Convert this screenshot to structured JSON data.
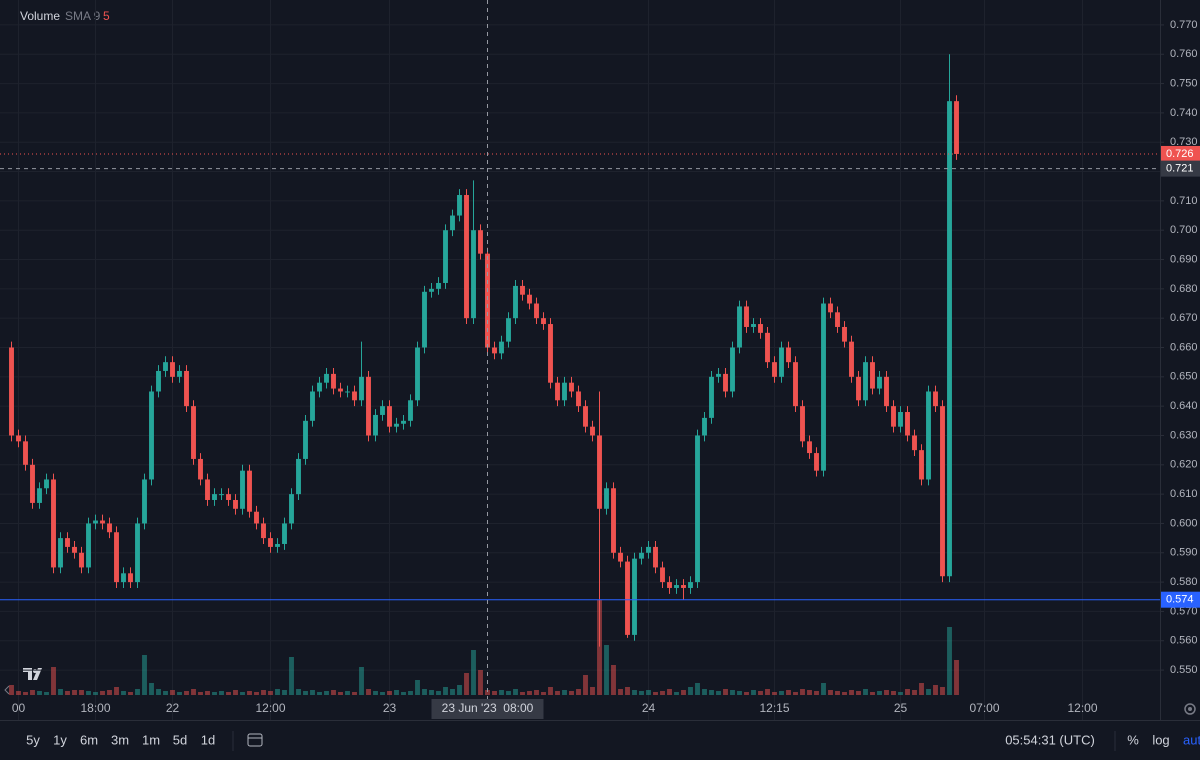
{
  "chart_data": {
    "type": "candlestick",
    "legend": {
      "name": "Volume",
      "indicator": "SMA 9",
      "value": "5"
    },
    "categories": [
      null,
      "00",
      null,
      null,
      null,
      null,
      null,
      null,
      null,
      null,
      null,
      null,
      "18:00",
      null,
      null,
      null,
      null,
      null,
      null,
      null,
      null,
      null,
      null,
      "22",
      null,
      null,
      null,
      null,
      null,
      null,
      null,
      null,
      null,
      null,
      null,
      null,
      null,
      "12:00",
      null,
      null,
      null,
      null,
      null,
      null,
      null,
      null,
      null,
      null,
      null,
      null,
      null,
      null,
      null,
      null,
      "23",
      null,
      null,
      null,
      null,
      null,
      null,
      null,
      null,
      null,
      null,
      null,
      null,
      null,
      null,
      null,
      null,
      null,
      null,
      null,
      null,
      null,
      null,
      null,
      null,
      null,
      null,
      null,
      null,
      null,
      null,
      null,
      null,
      null,
      null,
      null,
      null,
      "24",
      null,
      null,
      null,
      null,
      null,
      null,
      null,
      null,
      null,
      null,
      null,
      null,
      null,
      null,
      null,
      null,
      null,
      "12:15",
      null,
      null,
      null,
      null,
      null,
      null,
      null,
      null,
      null,
      null,
      null,
      null,
      null,
      null,
      null,
      null,
      null,
      "25",
      null,
      null,
      null,
      null,
      null,
      null,
      null,
      null,
      null,
      null,
      null,
      "07:00",
      null,
      null,
      null,
      null,
      null,
      null,
      null,
      null,
      null,
      null,
      null,
      null,
      null,
      "12:00",
      null,
      null,
      null,
      null,
      null,
      null,
      null,
      null,
      null,
      null
    ],
    "open": [
      0.66,
      0.63,
      0.628,
      0.62,
      0.607,
      0.612,
      0.615,
      0.585,
      0.595,
      0.592,
      0.59,
      0.585,
      0.6,
      0.601,
      0.6,
      0.597,
      0.58,
      0.583,
      0.58,
      0.6,
      0.615,
      0.645,
      0.652,
      0.655,
      0.65,
      0.652,
      0.64,
      0.622,
      0.615,
      0.608,
      0.61,
      0.61,
      0.608,
      0.605,
      0.618,
      0.604,
      0.6,
      0.595,
      0.592,
      0.593,
      0.6,
      0.61,
      0.622,
      0.635,
      0.645,
      0.648,
      0.651,
      0.646,
      0.645,
      0.645,
      0.642,
      0.65,
      0.63,
      0.637,
      0.64,
      0.633,
      0.634,
      0.635,
      0.642,
      0.66,
      0.679,
      0.68,
      0.682,
      0.7,
      0.705,
      0.712,
      0.67,
      0.7,
      0.692,
      0.66,
      0.658,
      0.662,
      0.67,
      0.681,
      0.678,
      0.675,
      0.67,
      0.668,
      0.648,
      0.642,
      0.648,
      0.645,
      0.64,
      0.633,
      0.63,
      0.605,
      0.612,
      0.59,
      0.587,
      0.562,
      0.588,
      0.59,
      0.592,
      0.585,
      0.58,
      0.578,
      0.579,
      0.578,
      0.58,
      0.63,
      0.636,
      0.65,
      0.651,
      0.645,
      0.66,
      0.674,
      0.667,
      0.668,
      0.665,
      0.655,
      0.65,
      0.66,
      0.655,
      0.64,
      0.628,
      0.624,
      0.618,
      0.675,
      0.672,
      0.667,
      0.662,
      0.65,
      0.642,
      0.655,
      0.646,
      0.65,
      0.64,
      0.633,
      0.638,
      0.63,
      0.625,
      0.615,
      0.645,
      0.64,
      0.582,
      0.744,
      null,
      null,
      null,
      null,
      null,
      null,
      null,
      null,
      null,
      null,
      null,
      null,
      null,
      null,
      null,
      null,
      null,
      null,
      null,
      null,
      null,
      null,
      null,
      null,
      null,
      null,
      null,
      null
    ],
    "high": [
      0.662,
      0.632,
      0.63,
      0.622,
      0.614,
      0.617,
      0.617,
      0.597,
      0.597,
      0.594,
      0.592,
      0.602,
      0.603,
      0.603,
      0.602,
      0.599,
      0.585,
      0.585,
      0.602,
      0.617,
      0.647,
      0.654,
      0.657,
      0.657,
      0.654,
      0.654,
      0.642,
      0.624,
      0.617,
      0.612,
      0.612,
      0.612,
      0.61,
      0.62,
      0.62,
      0.606,
      0.602,
      0.597,
      0.595,
      0.602,
      0.612,
      0.624,
      0.637,
      0.647,
      0.65,
      0.653,
      0.653,
      0.648,
      0.647,
      0.647,
      0.662,
      0.652,
      0.639,
      0.642,
      0.642,
      0.636,
      0.637,
      0.644,
      0.662,
      0.681,
      0.682,
      0.684,
      0.702,
      0.707,
      0.714,
      0.714,
      0.717,
      0.702,
      0.694,
      0.662,
      0.664,
      0.672,
      0.683,
      0.683,
      0.68,
      0.677,
      0.672,
      0.67,
      0.65,
      0.65,
      0.65,
      0.647,
      0.642,
      0.635,
      0.645,
      0.614,
      0.614,
      0.592,
      0.589,
      0.59,
      0.592,
      0.594,
      0.594,
      0.587,
      0.582,
      0.581,
      0.581,
      0.582,
      0.632,
      0.638,
      0.652,
      0.653,
      0.653,
      0.662,
      0.676,
      0.676,
      0.67,
      0.67,
      0.667,
      0.657,
      0.662,
      0.662,
      0.657,
      0.642,
      0.63,
      0.626,
      0.677,
      0.677,
      0.674,
      0.669,
      0.664,
      0.652,
      0.657,
      0.657,
      0.652,
      0.652,
      0.642,
      0.64,
      0.64,
      0.632,
      0.627,
      0.647,
      0.647,
      0.642,
      0.76,
      0.746,
      null,
      null,
      null,
      null,
      null,
      null,
      null,
      null,
      null,
      null,
      null,
      null,
      null,
      null,
      null,
      null,
      null,
      null,
      null,
      null,
      null,
      null,
      null,
      null,
      null,
      null,
      null,
      null
    ],
    "low": [
      0.628,
      0.626,
      0.618,
      0.605,
      0.605,
      0.61,
      0.583,
      0.583,
      0.59,
      0.588,
      0.583,
      0.583,
      0.598,
      0.598,
      0.595,
      0.578,
      0.578,
      0.578,
      0.578,
      0.598,
      0.613,
      0.643,
      0.65,
      0.648,
      0.648,
      0.638,
      0.62,
      0.613,
      0.606,
      0.606,
      0.608,
      0.606,
      0.603,
      0.603,
      0.602,
      0.598,
      0.593,
      0.59,
      0.59,
      0.591,
      0.598,
      0.608,
      0.62,
      0.633,
      0.643,
      0.646,
      0.644,
      0.643,
      0.643,
      0.64,
      0.64,
      0.628,
      0.628,
      0.635,
      0.631,
      0.631,
      0.632,
      0.633,
      0.64,
      0.658,
      0.677,
      0.678,
      0.68,
      0.698,
      0.703,
      0.668,
      0.668,
      0.69,
      0.658,
      0.656,
      0.656,
      0.66,
      0.668,
      0.676,
      0.673,
      0.668,
      0.666,
      0.646,
      0.64,
      0.64,
      0.643,
      0.638,
      0.631,
      0.628,
      0.558,
      0.603,
      0.588,
      0.585,
      0.561,
      0.56,
      0.586,
      0.588,
      0.583,
      0.578,
      0.576,
      0.576,
      0.574,
      0.576,
      0.578,
      0.628,
      0.634,
      0.648,
      0.643,
      0.643,
      0.658,
      0.665,
      0.665,
      0.663,
      0.653,
      0.648,
      0.648,
      0.653,
      0.638,
      0.626,
      0.622,
      0.616,
      0.616,
      0.67,
      0.665,
      0.66,
      0.648,
      0.64,
      0.64,
      0.644,
      0.644,
      0.638,
      0.631,
      0.631,
      0.628,
      0.623,
      0.613,
      0.613,
      0.638,
      0.58,
      0.58,
      0.724,
      null,
      null,
      null,
      null,
      null,
      null,
      null,
      null,
      null,
      null,
      null,
      null,
      null,
      null,
      null,
      null,
      null,
      null,
      null,
      null,
      null,
      null,
      null,
      null,
      null,
      null,
      null,
      null
    ],
    "close": [
      0.63,
      0.628,
      0.62,
      0.607,
      0.612,
      0.615,
      0.585,
      0.595,
      0.592,
      0.59,
      0.585,
      0.6,
      0.601,
      0.6,
      0.597,
      0.58,
      0.583,
      0.58,
      0.6,
      0.615,
      0.645,
      0.652,
      0.655,
      0.65,
      0.652,
      0.64,
      0.622,
      0.615,
      0.608,
      0.61,
      0.61,
      0.608,
      0.605,
      0.618,
      0.604,
      0.6,
      0.595,
      0.592,
      0.593,
      0.6,
      0.61,
      0.622,
      0.635,
      0.645,
      0.648,
      0.651,
      0.646,
      0.645,
      0.645,
      0.642,
      0.65,
      0.63,
      0.637,
      0.64,
      0.633,
      0.634,
      0.635,
      0.642,
      0.66,
      0.679,
      0.68,
      0.682,
      0.7,
      0.705,
      0.712,
      0.67,
      0.7,
      0.692,
      0.66,
      0.658,
      0.662,
      0.67,
      0.681,
      0.678,
      0.675,
      0.67,
      0.668,
      0.648,
      0.642,
      0.648,
      0.645,
      0.64,
      0.633,
      0.63,
      0.605,
      0.612,
      0.59,
      0.587,
      0.562,
      0.588,
      0.59,
      0.592,
      0.585,
      0.58,
      0.578,
      0.579,
      0.578,
      0.58,
      0.63,
      0.636,
      0.65,
      0.651,
      0.645,
      0.66,
      0.674,
      0.667,
      0.668,
      0.665,
      0.655,
      0.65,
      0.66,
      0.655,
      0.64,
      0.628,
      0.624,
      0.618,
      0.675,
      0.672,
      0.667,
      0.662,
      0.65,
      0.642,
      0.655,
      0.646,
      0.65,
      0.64,
      0.633,
      0.638,
      0.63,
      0.625,
      0.615,
      0.645,
      0.64,
      0.582,
      0.744,
      0.726,
      null,
      null,
      null,
      null,
      null,
      null,
      null,
      null,
      null,
      null,
      null,
      null,
      null,
      null,
      null,
      null,
      null,
      null,
      null,
      null,
      null,
      null,
      null,
      null,
      null,
      null,
      null,
      null
    ],
    "volume": [
      10,
      4,
      3,
      5,
      4,
      3,
      28,
      6,
      4,
      5,
      5,
      4,
      3,
      4,
      5,
      8,
      4,
      3,
      6,
      40,
      12,
      6,
      4,
      5,
      3,
      4,
      6,
      3,
      4,
      3,
      4,
      3,
      5,
      3,
      4,
      3,
      5,
      4,
      6,
      5,
      38,
      6,
      4,
      5,
      3,
      4,
      5,
      3,
      4,
      3,
      28,
      6,
      4,
      3,
      4,
      5,
      3,
      4,
      15,
      6,
      5,
      4,
      8,
      6,
      10,
      22,
      45,
      25,
      5,
      4,
      5,
      4,
      6,
      3,
      4,
      5,
      3,
      8,
      4,
      5,
      4,
      6,
      20,
      8,
      95,
      50,
      30,
      6,
      8,
      5,
      4,
      5,
      3,
      4,
      6,
      3,
      5,
      8,
      12,
      6,
      5,
      4,
      6,
      5,
      4,
      3,
      5,
      4,
      6,
      3,
      4,
      5,
      3,
      6,
      5,
      4,
      12,
      5,
      4,
      3,
      5,
      4,
      6,
      3,
      4,
      5,
      4,
      3,
      6,
      5,
      12,
      6,
      10,
      8,
      68,
      35,
      null,
      null,
      null,
      null,
      null,
      null,
      null,
      null,
      null,
      null,
      null,
      null,
      null,
      null,
      null,
      null,
      null,
      null,
      null,
      null,
      null,
      null,
      null,
      null,
      null,
      null,
      null,
      null
    ],
    "up_color": "#26a69a",
    "down_color": "#ef5350",
    "ylim": [
      0.5415,
      0.7785
    ],
    "yticks": [
      {
        "value": 0.55,
        "label": "0.550"
      },
      {
        "value": 0.56,
        "label": "0.560"
      },
      {
        "value": 0.57,
        "label": "0.570"
      },
      {
        "value": 0.58,
        "label": "0.580"
      },
      {
        "value": 0.59,
        "label": "0.590"
      },
      {
        "value": 0.6,
        "label": "0.600"
      },
      {
        "value": 0.61,
        "label": "0.610"
      },
      {
        "value": 0.62,
        "label": "0.620"
      },
      {
        "value": 0.63,
        "label": "0.630"
      },
      {
        "value": 0.64,
        "label": "0.640"
      },
      {
        "value": 0.65,
        "label": "0.650"
      },
      {
        "value": 0.66,
        "label": "0.660"
      },
      {
        "value": 0.67,
        "label": "0.670"
      },
      {
        "value": 0.68,
        "label": "0.680"
      },
      {
        "value": 0.69,
        "label": "0.690"
      },
      {
        "value": 0.7,
        "label": "0.700"
      },
      {
        "value": 0.71,
        "label": "0.710"
      },
      {
        "value": 0.72,
        "label": "0.720"
      },
      {
        "value": 0.73,
        "label": "0.730"
      },
      {
        "value": 0.74,
        "label": "0.740"
      },
      {
        "value": 0.75,
        "label": "0.750"
      },
      {
        "value": 0.76,
        "label": "0.760"
      },
      {
        "value": 0.77,
        "label": "0.770"
      }
    ],
    "grid": true,
    "price_lines": [
      {
        "value": 0.726,
        "color": "#ef5350",
        "style": "dotted"
      },
      {
        "value": 0.574,
        "color": "#2962ff",
        "style": "solid"
      }
    ],
    "crosshair": {
      "index": 68,
      "x_label": "23 Jun '23  08:00",
      "price": 0.721
    }
  },
  "toolbar": {
    "ranges": [
      "5y",
      "1y",
      "6m",
      "3m",
      "1m",
      "5d",
      "1d"
    ],
    "clock": "05:54:31 (UTC)",
    "options": [
      "%",
      "log",
      "auto"
    ]
  }
}
